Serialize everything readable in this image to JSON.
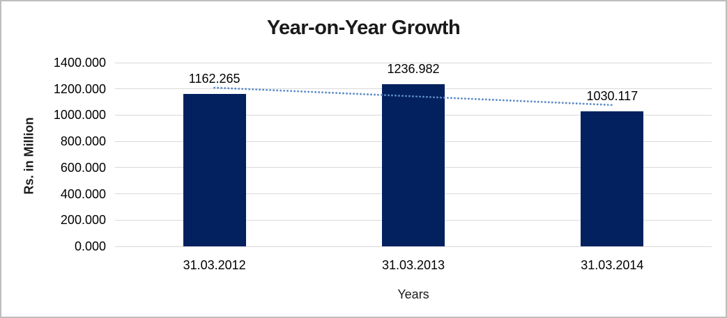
{
  "chart_data": {
    "type": "bar",
    "title": "Year-on-Year Growth",
    "xlabel": "Years",
    "ylabel": "Rs. in Million",
    "categories": [
      "31.03.2012",
      "31.03.2013",
      "31.03.2014"
    ],
    "values": [
      1162.265,
      1236.982,
      1030.117
    ],
    "data_labels": [
      "1162.265",
      "1236.982",
      "1030.117"
    ],
    "ylim": [
      0,
      1400
    ],
    "ytick_interval": 200,
    "ytick_labels": [
      "1400.000",
      "1200.000",
      "1000.000",
      "800.000",
      "600.000",
      "400.000",
      "200.000",
      "0.000"
    ],
    "grid": true,
    "legend": false,
    "bar_color": "#03215e",
    "trendline": {
      "type": "linear",
      "style": "dotted",
      "color": "#5b8bc6"
    },
    "gridline_color": "#d9d9d9",
    "title_color": "#1a1a1a",
    "text_color": "#000000"
  }
}
